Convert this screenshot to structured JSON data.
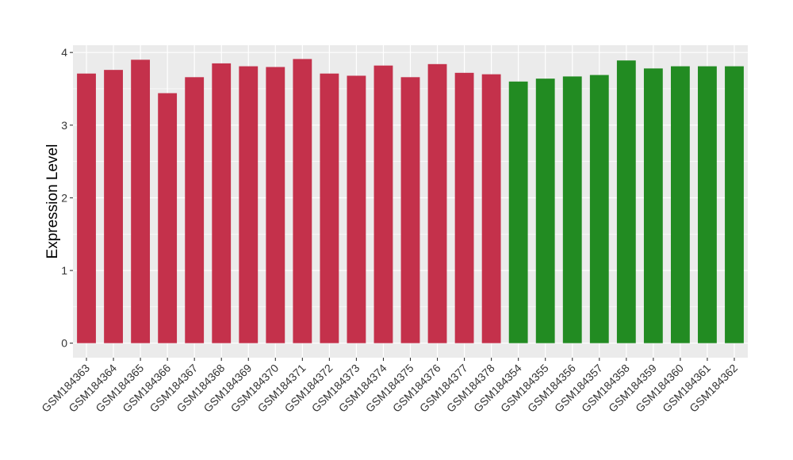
{
  "chart_data": {
    "type": "bar",
    "title": "",
    "xlabel": "",
    "ylabel": "Expression Level",
    "ylim": [
      -0.2,
      4.1
    ],
    "yticks": [
      0,
      1,
      2,
      3,
      4
    ],
    "ytick_labels": [
      "0",
      "1",
      "2",
      "3",
      "4"
    ],
    "grid": true,
    "legend": "none",
    "colors": {
      "group_a": "#c4314b",
      "group_b": "#228b22",
      "panel_background": "#ebebeb",
      "grid": "#ffffff"
    },
    "categories": [
      "GSM184363",
      "GSM184364",
      "GSM184365",
      "GSM184366",
      "GSM184367",
      "GSM184368",
      "GSM184369",
      "GSM184370",
      "GSM184371",
      "GSM184372",
      "GSM184373",
      "GSM184374",
      "GSM184375",
      "GSM184376",
      "GSM184377",
      "GSM184378",
      "GSM184354",
      "GSM184355",
      "GSM184356",
      "GSM184357",
      "GSM184358",
      "GSM184359",
      "GSM184360",
      "GSM184361",
      "GSM184362"
    ],
    "values": [
      3.71,
      3.76,
      3.9,
      3.44,
      3.66,
      3.85,
      3.81,
      3.8,
      3.91,
      3.71,
      3.68,
      3.82,
      3.66,
      3.84,
      3.72,
      3.7,
      3.6,
      3.64,
      3.67,
      3.69,
      3.89,
      3.78,
      3.81,
      3.81,
      3.81
    ],
    "bar_color_groups": [
      "group_a",
      "group_a",
      "group_a",
      "group_a",
      "group_a",
      "group_a",
      "group_a",
      "group_a",
      "group_a",
      "group_a",
      "group_a",
      "group_a",
      "group_a",
      "group_a",
      "group_a",
      "group_a",
      "group_b",
      "group_b",
      "group_b",
      "group_b",
      "group_b",
      "group_b",
      "group_b",
      "group_b",
      "group_b"
    ]
  }
}
